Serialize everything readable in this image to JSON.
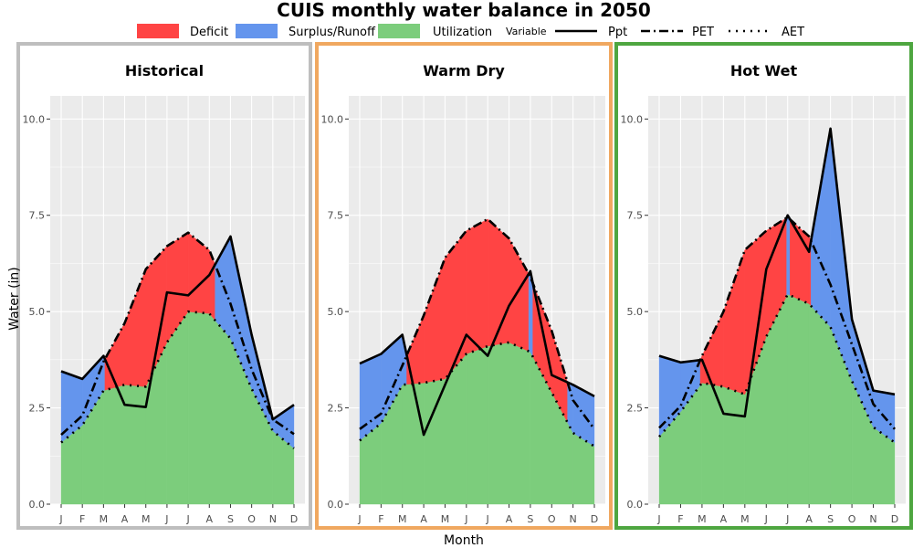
{
  "chart_data": {
    "type": "area",
    "title": "CUIS monthly water balance in 2050",
    "xlabel": "Month",
    "ylabel": "Water (in)",
    "ylim": [
      0,
      10.6
    ],
    "yticks": [
      0,
      2.5,
      5,
      7.5,
      10
    ],
    "ytick_labels": [
      "0.0",
      "2.5",
      "5.0",
      "7.5",
      "10.0"
    ],
    "categories": [
      "J",
      "F",
      "M",
      "A",
      "M",
      "J",
      "J",
      "A",
      "S",
      "O",
      "N",
      "D"
    ],
    "grid": true,
    "legend_position": "top",
    "legend": {
      "fill": [
        {
          "label": "Deficit",
          "color": "#ff4444"
        },
        {
          "label": "Surplus/Runoff",
          "color": "#6495ed"
        },
        {
          "label": "Utilization",
          "color": "#7ccd7c"
        }
      ],
      "variable_title": "Variable",
      "lines": [
        {
          "label": "Ppt",
          "style": "solid"
        },
        {
          "label": "PET",
          "style": "dashed"
        },
        {
          "label": "AET",
          "style": "dotted"
        }
      ]
    },
    "colors": {
      "deficit": "#ff4444",
      "surplus": "#6495ed",
      "utilization": "#7ccd7c",
      "panel_bg": "#ebebeb"
    },
    "panels": [
      {
        "title": "Historical",
        "border_color": "#bebebe",
        "series": [
          {
            "name": "Ppt",
            "values": [
              3.45,
              3.25,
              3.85,
              2.58,
              2.52,
              5.5,
              5.42,
              5.95,
              6.95,
              4.4,
              2.2,
              2.58
            ]
          },
          {
            "name": "PET",
            "values": [
              1.8,
              2.3,
              3.7,
              4.7,
              6.1,
              6.7,
              7.05,
              6.6,
              5.2,
              3.5,
              2.2,
              1.82
            ]
          },
          {
            "name": "AET",
            "values": [
              1.6,
              2.05,
              2.95,
              3.1,
              3.05,
              4.2,
              5.0,
              4.95,
              4.3,
              3.0,
              1.9,
              1.45
            ]
          }
        ]
      },
      {
        "title": "Warm Dry",
        "border_color": "#f0a860",
        "series": [
          {
            "name": "Ppt",
            "values": [
              3.65,
              3.9,
              4.4,
              1.8,
              3.1,
              4.4,
              3.85,
              5.15,
              6.05,
              3.35,
              3.1,
              2.8
            ]
          },
          {
            "name": "PET",
            "values": [
              1.95,
              2.35,
              3.6,
              4.9,
              6.4,
              7.1,
              7.4,
              6.9,
              5.9,
              4.5,
              2.7,
              1.95
            ]
          },
          {
            "name": "AET",
            "values": [
              1.65,
              2.1,
              3.1,
              3.15,
              3.25,
              3.9,
              4.1,
              4.2,
              3.95,
              2.9,
              1.85,
              1.5
            ]
          }
        ]
      },
      {
        "title": "Hot Wet",
        "border_color": "#4ea640",
        "series": [
          {
            "name": "Ppt",
            "values": [
              3.85,
              3.68,
              3.75,
              2.35,
              2.28,
              6.1,
              7.5,
              6.55,
              9.75,
              4.8,
              2.95,
              2.85
            ]
          },
          {
            "name": "PET",
            "values": [
              1.98,
              2.55,
              3.85,
              5.0,
              6.6,
              7.1,
              7.45,
              6.95,
              5.7,
              4.15,
              2.6,
              1.95
            ]
          },
          {
            "name": "AET",
            "values": [
              1.75,
              2.4,
              3.15,
              3.05,
              2.85,
              4.35,
              5.45,
              5.2,
              4.6,
              3.2,
              2.0,
              1.6
            ]
          }
        ]
      }
    ]
  }
}
